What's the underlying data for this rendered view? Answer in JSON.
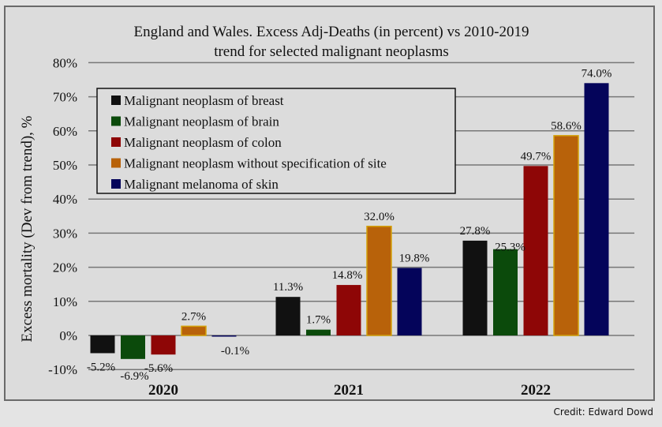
{
  "chart_data": {
    "type": "bar",
    "title": "England and Wales. Excess Adj-Deaths (in percent) vs 2010-2019",
    "subtitle": "trend for selected malignant neoplasms",
    "xlabel": "",
    "ylabel": "Excess mortality (Dev from trend), %",
    "ylim": [
      -10,
      80
    ],
    "yticks": [
      80,
      70,
      60,
      50,
      40,
      30,
      20,
      10,
      0,
      -10
    ],
    "ytick_labels": [
      "80%",
      "70%",
      "60%",
      "50%",
      "40%",
      "30%",
      "20%",
      "10%",
      "0%",
      "-10%"
    ],
    "grid": true,
    "legend_position": "top-left",
    "categories": [
      "2020",
      "2021",
      "2022"
    ],
    "series": [
      {
        "name": "Malignant neoplasm of breast",
        "color": "#111111",
        "values": [
          -5.2,
          11.3,
          27.8
        ],
        "labels": [
          "-5.2%",
          "11.3%",
          "27.8%"
        ]
      },
      {
        "name": "Malignant neoplasm of brain",
        "color": "#0b4a0b",
        "values": [
          -6.9,
          1.7,
          25.3
        ],
        "labels": [
          "-6.9%",
          "1.7%",
          "25.3%"
        ]
      },
      {
        "name": "Malignant neoplasm of colon",
        "color": "#8e0606",
        "values": [
          -5.6,
          14.8,
          49.7
        ],
        "labels": [
          "-5.6%",
          "14.8%",
          "49.7%"
        ]
      },
      {
        "name": "Malignant neoplasm without specification of site",
        "color": "#b8620a",
        "values": [
          2.7,
          32.0,
          58.6
        ],
        "labels": [
          "2.7%",
          "32.0%",
          "58.6%"
        ]
      },
      {
        "name": "Malignant melanoma of skin",
        "color": "#04045a",
        "values": [
          -0.1,
          19.8,
          74.0
        ],
        "labels": [
          "-0.1%",
          "19.8%",
          "74.0%"
        ]
      }
    ]
  },
  "credit": "Credit: Edward Dowd"
}
